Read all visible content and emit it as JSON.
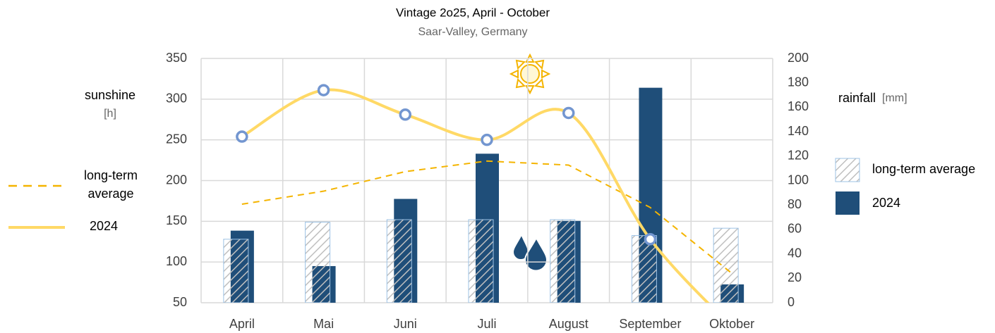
{
  "chart_data": {
    "type": "combo",
    "title": "Vintage 2o25, April - October",
    "subtitle": "Saar-Valley, Germany",
    "ylabel": {
      "text": "sunshine",
      "unit": "[h]"
    },
    "y2label": {
      "text": "rainfall",
      "unit": "[mm]"
    },
    "categories": [
      "April",
      "Mai",
      "Juni",
      "Juli",
      "August",
      "September",
      "Oktober"
    ],
    "ylim": [
      50,
      350
    ],
    "yticks": [
      50,
      100,
      150,
      200,
      250,
      300,
      350
    ],
    "y2lim": [
      0,
      200
    ],
    "y2ticks": [
      0,
      20,
      40,
      60,
      80,
      100,
      120,
      140,
      160,
      180,
      200
    ],
    "grid": true,
    "series": [
      {
        "name": "long-term average",
        "type": "bar",
        "axis": "y2",
        "color": "#9dc3e6",
        "hatched": true,
        "values": [
          52,
          66,
          68,
          68,
          68,
          55,
          61
        ]
      },
      {
        "name": "2024",
        "type": "bar",
        "axis": "y2",
        "color": "#1f4e79",
        "values": [
          59,
          30,
          85,
          122,
          67,
          176,
          15
        ]
      },
      {
        "name": "long-term average",
        "type": "line",
        "color": "#f4b400",
        "dashed": true,
        "values": [
          171,
          187,
          211,
          224,
          219,
          167,
          86
        ]
      },
      {
        "name": "2024",
        "type": "line",
        "color": "#ffd966",
        "markers": true,
        "values": [
          254,
          311,
          281,
          250,
          283,
          128,
          20
        ]
      }
    ]
  }
}
